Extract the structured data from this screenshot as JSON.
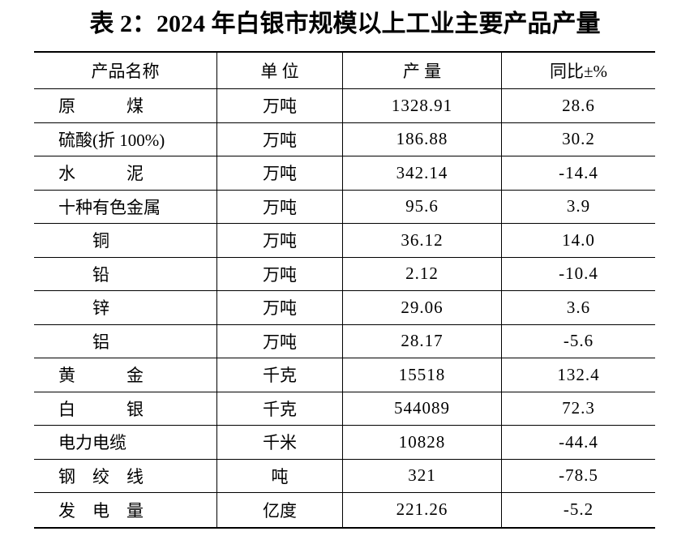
{
  "title": "表 2：2024 年白银市规模以上工业主要产品产量",
  "table": {
    "columns": [
      "产品名称",
      "单 位",
      "产 量",
      "同比±%"
    ],
    "rows": [
      {
        "name": "原　　　煤",
        "unit": "万吨",
        "output": "1328.91",
        "yoy": "28.6",
        "sub": false
      },
      {
        "name": "硫酸(折 100%)",
        "unit": "万吨",
        "output": "186.88",
        "yoy": "30.2",
        "sub": false
      },
      {
        "name": "水　　　泥",
        "unit": "万吨",
        "output": "342.14",
        "yoy": "-14.4",
        "sub": false
      },
      {
        "name": "十种有色金属",
        "unit": "万吨",
        "output": "95.6",
        "yoy": "3.9",
        "sub": false
      },
      {
        "name": "铜",
        "unit": "万吨",
        "output": "36.12",
        "yoy": "14.0",
        "sub": true
      },
      {
        "name": "铅",
        "unit": "万吨",
        "output": "2.12",
        "yoy": "-10.4",
        "sub": true
      },
      {
        "name": "锌",
        "unit": "万吨",
        "output": "29.06",
        "yoy": "3.6",
        "sub": true
      },
      {
        "name": "铝",
        "unit": "万吨",
        "output": "28.17",
        "yoy": "-5.6",
        "sub": true
      },
      {
        "name": "黄　　　金",
        "unit": "千克",
        "output": "15518",
        "yoy": "132.4",
        "sub": false
      },
      {
        "name": "白　　　银",
        "unit": "千克",
        "output": "544089",
        "yoy": "72.3",
        "sub": false
      },
      {
        "name": "电力电缆",
        "unit": "千米",
        "output": "10828",
        "yoy": "-44.4",
        "sub": false
      },
      {
        "name": "钢　绞　线",
        "unit": "吨",
        "output": "321",
        "yoy": "-78.5",
        "sub": false
      },
      {
        "name": "发　电　量",
        "unit": "亿度",
        "output": "221.26",
        "yoy": "-5.2",
        "sub": false
      }
    ]
  },
  "colors": {
    "background": "#ffffff",
    "text": "#000000",
    "border": "#000000"
  }
}
